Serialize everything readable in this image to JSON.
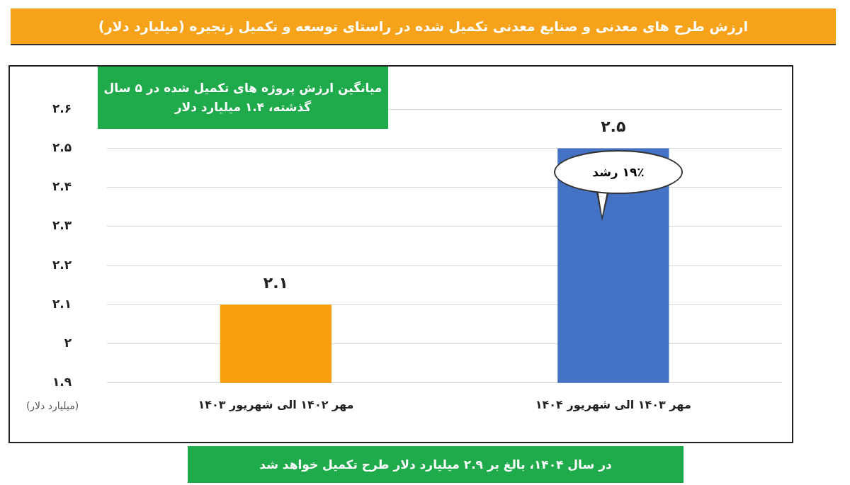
{
  "chart_data": {
    "type": "bar",
    "title": "ارزش طرح های معدنی و صنایع معدنی تکمیل شده در راستای توسعه و تکمیل زنجیره (میلیارد دلار)",
    "ylabel": "(میلیارد دلار)",
    "categories": [
      "مهر ۱۴۰۲ الی شهریور ۱۴۰۳",
      "مهر ۱۴۰۳ الی شهریور ۱۴۰۴"
    ],
    "values": [
      2.1,
      2.5
    ],
    "colors": [
      "#f79f0f",
      "#4472c4"
    ],
    "value_labels": [
      "۲.۱",
      "۲.۵"
    ],
    "ylim": [
      1.9,
      2.6
    ],
    "yticks": [
      {
        "value": 1.9,
        "label": "۱.۹"
      },
      {
        "value": 2,
        "label": "۲"
      },
      {
        "value": 2.1,
        "label": "۲.۱"
      },
      {
        "value": 2.2,
        "label": "۲.۲"
      },
      {
        "value": 2.3,
        "label": "۲.۳"
      },
      {
        "value": 2.4,
        "label": "۲.۴"
      },
      {
        "value": 2.5,
        "label": "۲.۵"
      },
      {
        "value": 2.6,
        "label": "۲.۶"
      }
    ],
    "grid": "y",
    "legend": false,
    "annotations": [
      "میانگین ارزش پروژه های تکمیل شده در ۵ سال گذشته، ۱.۴ میلیارد دلار",
      "۱۹٪ رشد",
      "در سال ۱۴۰۴، بالغ بر ۲.۹ میلیارد دلار طرح تکمیل خواهد شد"
    ]
  }
}
